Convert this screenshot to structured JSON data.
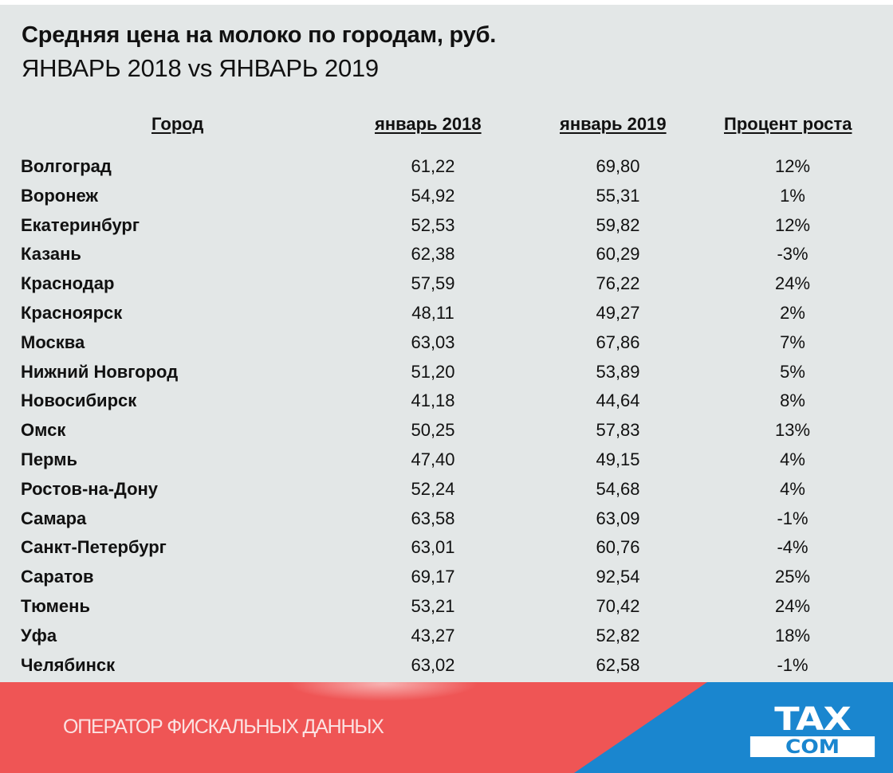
{
  "header": {
    "title": "Средняя цена на молоко по городам, руб.",
    "subtitle": "ЯНВАРЬ 2018 vs ЯНВАРЬ 2019"
  },
  "table": {
    "columns": [
      "Город",
      "январь 2018",
      "январь 2019",
      "Процент роста"
    ],
    "rows": [
      [
        "Волгоград",
        "61,22",
        "69,80",
        "12%"
      ],
      [
        "Воронеж",
        "54,92",
        "55,31",
        "1%"
      ],
      [
        "Екатеринбург",
        "52,53",
        "59,82",
        "12%"
      ],
      [
        "Казань",
        "62,38",
        "60,29",
        "-3%"
      ],
      [
        "Краснодар",
        "57,59",
        "76,22",
        "24%"
      ],
      [
        "Красноярск",
        "48,11",
        "49,27",
        "2%"
      ],
      [
        "Москва",
        "63,03",
        "67,86",
        "7%"
      ],
      [
        "Нижний Новгород",
        "51,20",
        "53,89",
        "5%"
      ],
      [
        "Новосибирск",
        "41,18",
        "44,64",
        "8%"
      ],
      [
        "Омск",
        "50,25",
        "57,83",
        "13%"
      ],
      [
        "Пермь",
        "47,40",
        "49,15",
        "4%"
      ],
      [
        "Ростов-на-Дону",
        "52,24",
        "54,68",
        "4%"
      ],
      [
        "Самара",
        "63,58",
        "63,09",
        "-1%"
      ],
      [
        "Санкт-Петербург",
        "63,01",
        "60,76",
        "-4%"
      ],
      [
        "Саратов",
        "69,17",
        "92,54",
        "25%"
      ],
      [
        "Тюмень",
        "53,21",
        "70,42",
        "24%"
      ],
      [
        "Уфа",
        "43,27",
        "52,82",
        "18%"
      ],
      [
        "Челябинск",
        "63,02",
        "62,58",
        "-1%"
      ]
    ]
  },
  "footer": {
    "tagline": "ОПЕРАТОР ФИСКАЛЬНЫХ ДАННЫХ",
    "logo_top": "TAX",
    "logo_bottom": "COM",
    "colors": {
      "red": "#ef5555",
      "blue": "#1a86cf",
      "background": "#e3e7e7"
    }
  },
  "chart_data": {
    "type": "table",
    "title": "Средняя цена на молоко по городам, руб.",
    "subtitle": "ЯНВАРЬ 2018 vs ЯНВАРЬ 2019",
    "columns": [
      "Город",
      "январь 2018",
      "январь 2019",
      "Процент роста"
    ],
    "categories": [
      "Волгоград",
      "Воронеж",
      "Екатеринбург",
      "Казань",
      "Краснодар",
      "Красноярск",
      "Москва",
      "Нижний Новгород",
      "Новосибирск",
      "Омск",
      "Пермь",
      "Ростов-на-Дону",
      "Самара",
      "Санкт-Петербург",
      "Саратов",
      "Тюмень",
      "Уфа",
      "Челябинск"
    ],
    "series": [
      {
        "name": "январь 2018",
        "values": [
          61.22,
          54.92,
          52.53,
          62.38,
          57.59,
          48.11,
          63.03,
          51.2,
          41.18,
          50.25,
          47.4,
          52.24,
          63.58,
          63.01,
          69.17,
          53.21,
          43.27,
          63.02
        ]
      },
      {
        "name": "январь 2019",
        "values": [
          69.8,
          55.31,
          59.82,
          60.29,
          76.22,
          49.27,
          67.86,
          53.89,
          44.64,
          57.83,
          49.15,
          54.68,
          63.09,
          60.76,
          92.54,
          70.42,
          52.82,
          62.58
        ]
      },
      {
        "name": "Процент роста",
        "values": [
          12,
          1,
          12,
          -3,
          24,
          2,
          7,
          5,
          8,
          13,
          4,
          4,
          -1,
          -4,
          25,
          24,
          18,
          -1
        ]
      }
    ],
    "units": "руб."
  }
}
